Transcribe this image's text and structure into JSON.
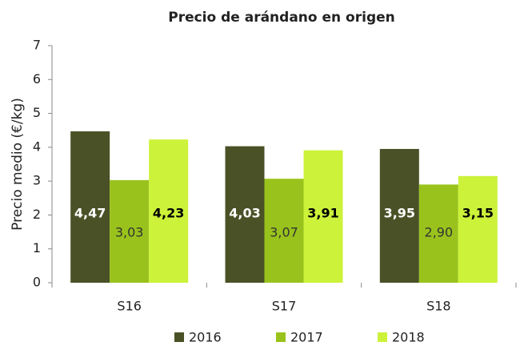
{
  "chart_data": {
    "type": "bar",
    "title": "Precio de arándano en origen",
    "ylabel": "Precio medio (€/kg)",
    "categories": [
      "S16",
      "S17",
      "S18"
    ],
    "series": [
      {
        "name": "2016",
        "color": "#4a5126",
        "values": [
          4.47,
          4.03,
          3.95
        ],
        "value_labels": [
          "4,47",
          "4,03",
          "3,95"
        ]
      },
      {
        "name": "2017",
        "color": "#99c31c",
        "values": [
          3.03,
          3.07,
          2.9
        ],
        "value_labels": [
          "3,03",
          "3,07",
          "2,90"
        ]
      },
      {
        "name": "2018",
        "color": "#ccf23a",
        "values": [
          4.23,
          3.91,
          3.15
        ],
        "value_labels": [
          "4,23",
          "3,91",
          "3,15"
        ]
      }
    ],
    "ylim": [
      0,
      7
    ],
    "yticks": [
      0,
      1,
      2,
      3,
      4,
      5,
      6,
      7
    ],
    "grid": false,
    "legend": "bottom"
  }
}
